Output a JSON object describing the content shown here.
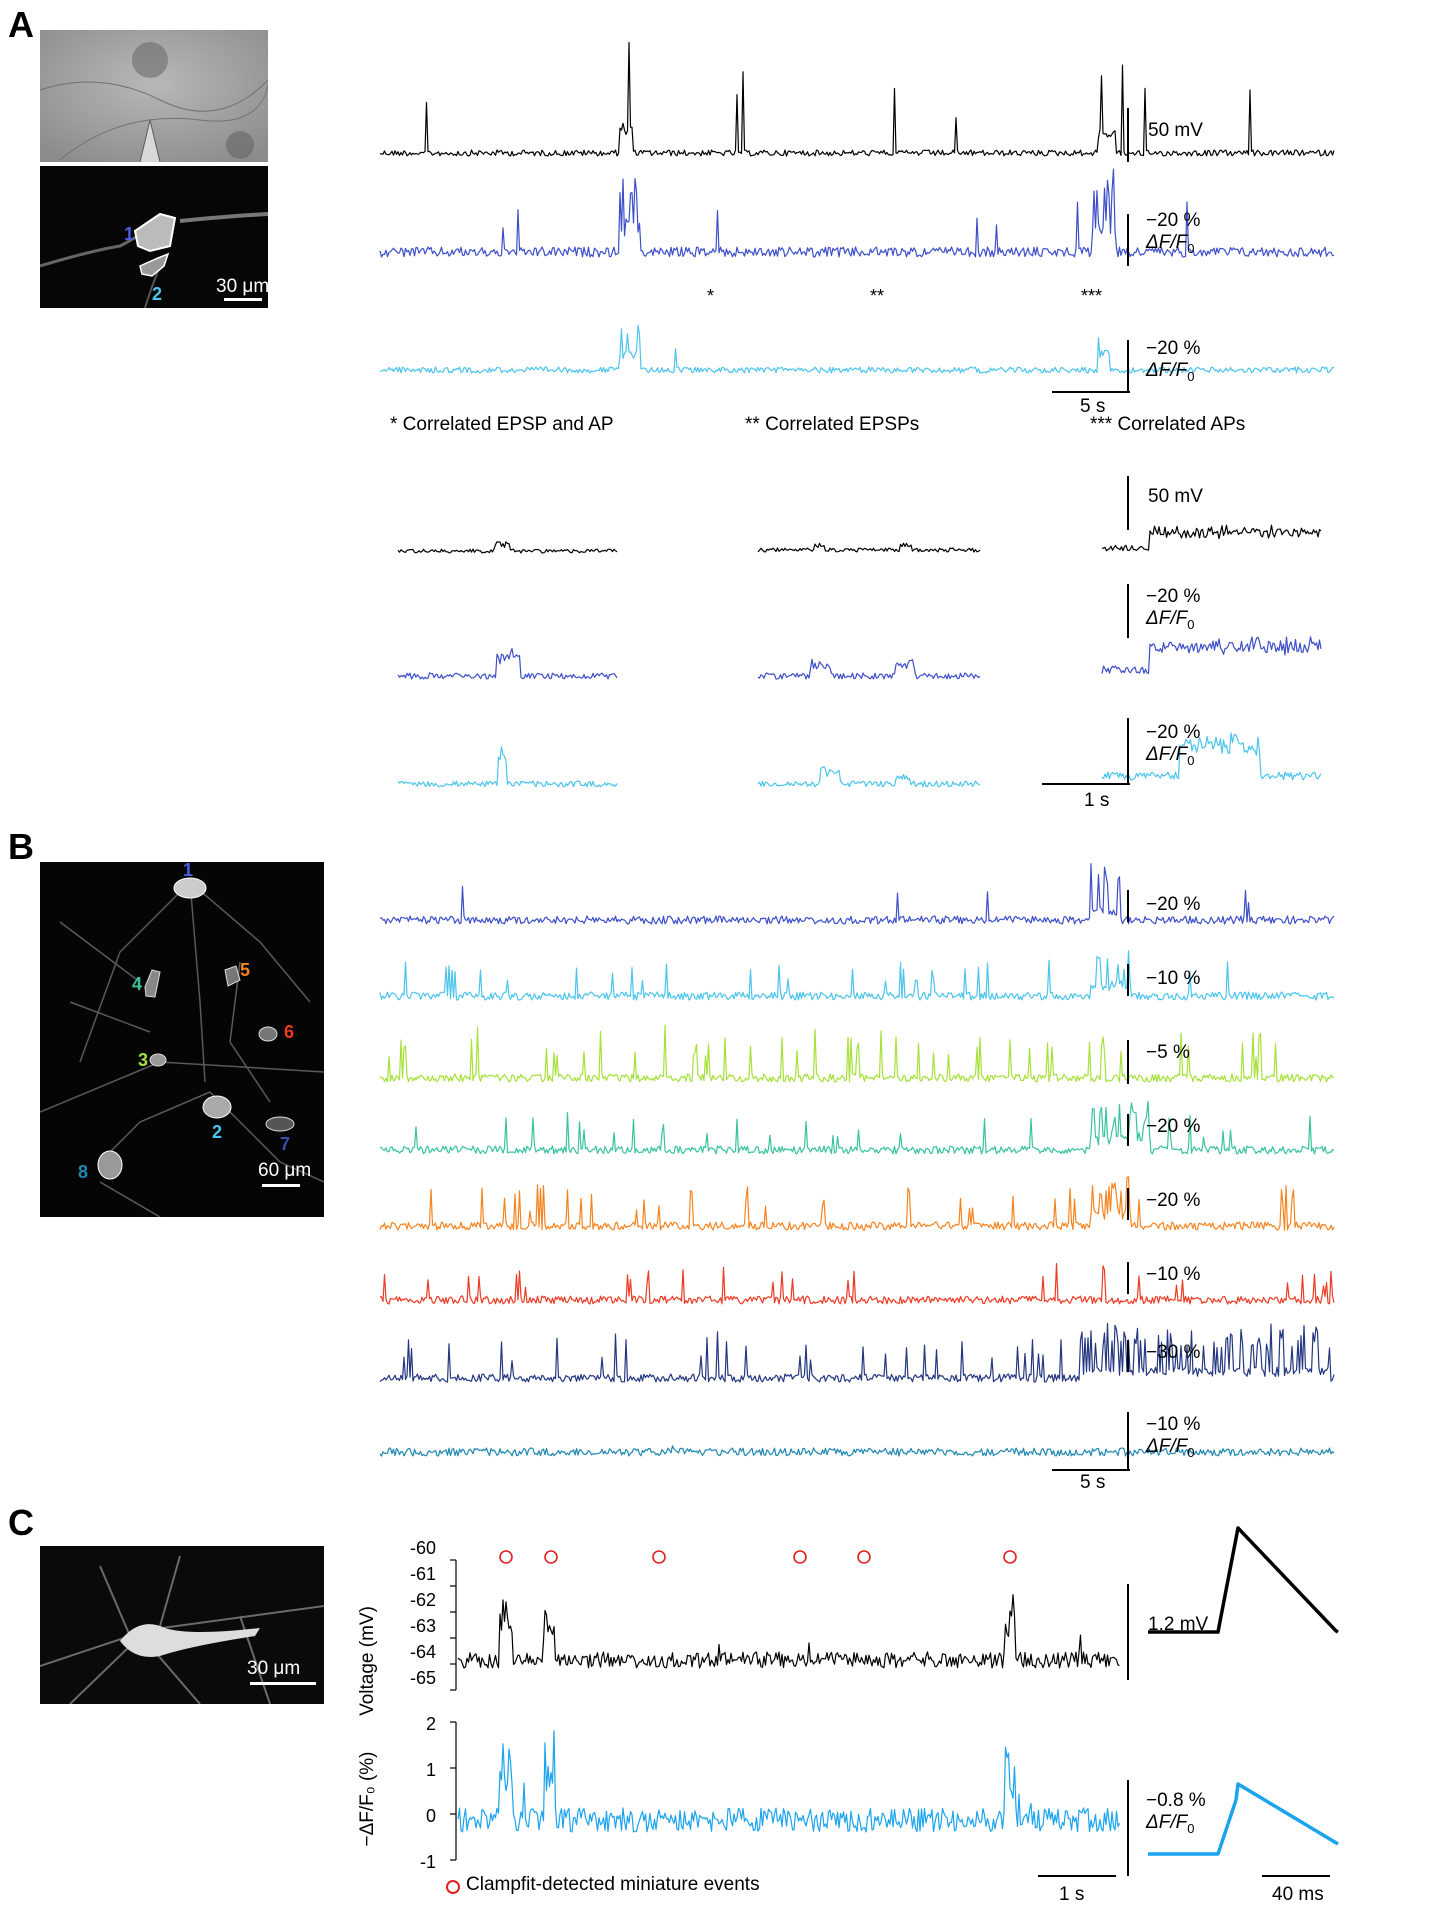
{
  "panels": {
    "a": "A",
    "b": "B",
    "c": "C"
  },
  "colors": {
    "black": "#000000",
    "blue": "#3d4fc9",
    "cyan": "#4cc4ec",
    "green": "#a6e13a",
    "teal": "#39c2a0",
    "orange": "#f58420",
    "red": "#ec3a23",
    "navy": "#243780",
    "dblue": "#1f87b0",
    "c_blue": "#1aa3ef",
    "marker": "#e32020"
  },
  "panel_a": {
    "micro_scale": "30 μm",
    "cell_labels": [
      {
        "n": "1",
        "color": "#4a5ee0"
      },
      {
        "n": "2",
        "color": "#4cc4ec"
      }
    ],
    "scale_voltage": "50 mV",
    "scale_df": "−20 %",
    "scale_df_sub": "ΔF/F",
    "scale_df_sub0": "0",
    "scale_time": "5 s",
    "marker_1": "*",
    "marker_2": "**",
    "marker_3": "***",
    "note_1": "* Correlated EPSP and AP",
    "note_2": "** Correlated EPSPs",
    "note_3": "*** Correlated APs",
    "zoom_scale_voltage": "50 mV",
    "zoom_scale_df": "−20 %",
    "zoom_scale_time": "1 s"
  },
  "panel_b": {
    "micro_scale": "60 μm",
    "cell_labels": [
      {
        "n": "1",
        "color": "#4a5ee0"
      },
      {
        "n": "2",
        "color": "#4cc4ec"
      },
      {
        "n": "3",
        "color": "#a6e13a"
      },
      {
        "n": "4",
        "color": "#39c2a0"
      },
      {
        "n": "5",
        "color": "#f58420"
      },
      {
        "n": "6",
        "color": "#ec3a23"
      },
      {
        "n": "7",
        "color": "#3b4ea8"
      },
      {
        "n": "8",
        "color": "#1f87b0"
      }
    ],
    "trace_scales": [
      "−20 %",
      "−10 %",
      "−5 %",
      "−20 %",
      "−20 %",
      "−10 %",
      "−30 %",
      "−10 %"
    ],
    "scale_df_sub": "ΔF/F",
    "scale_df_sub0": "0",
    "scale_time": "5 s"
  },
  "panel_c": {
    "micro_scale": "30 μm",
    "voltage_ylabel": "Voltage (mV)",
    "voltage_ticks": [
      "-60",
      "-61",
      "-62",
      "-63",
      "-64",
      "-65"
    ],
    "df_ylabel": "−ΔF/F₀ (%)",
    "df_ticks": [
      "2",
      "1",
      "0",
      "-1"
    ],
    "scale_time": "1 s",
    "avg_scale_voltage": "1.2 mV",
    "avg_scale_df": "−0.8 %",
    "avg_scale_df_sub": "ΔF/F",
    "avg_scale_df_sub0": "0",
    "avg_scale_time": "40 ms",
    "legend": "Clampfit-detected miniature events"
  },
  "chart_data": [
    {
      "type": "line",
      "panel": "A",
      "series": [
        {
          "name": "Voltage",
          "color": "#000000",
          "scale_bar": "50 mV"
        },
        {
          "name": "1",
          "color": "#3d4fc9",
          "scale_bar": "−20 % ΔF/F0"
        },
        {
          "name": "2",
          "color": "#4cc4ec",
          "scale_bar": "−20 % ΔF/F0"
        }
      ],
      "scale_time": "5 s",
      "annotations": [
        "* Correlated EPSP and AP",
        "** Correlated EPSPs",
        "*** Correlated APs"
      ]
    },
    {
      "type": "line",
      "panel": "B",
      "series": [
        {
          "name": "1",
          "color": "#3d4fc9",
          "scale_bar": "−20 %"
        },
        {
          "name": "2",
          "color": "#4cc4ec",
          "scale_bar": "−10 %"
        },
        {
          "name": "3",
          "color": "#a6e13a",
          "scale_bar": "−5 %"
        },
        {
          "name": "4",
          "color": "#39c2a0",
          "scale_bar": "−20 %"
        },
        {
          "name": "5",
          "color": "#f58420",
          "scale_bar": "−20 %"
        },
        {
          "name": "6",
          "color": "#ec3a23",
          "scale_bar": "−10 %"
        },
        {
          "name": "7",
          "color": "#243780",
          "scale_bar": "−30 %"
        },
        {
          "name": "8",
          "color": "#1f87b0",
          "scale_bar": "−10 % ΔF/F0"
        }
      ],
      "scale_time": "5 s"
    },
    {
      "type": "line",
      "panel": "C",
      "ylabel": "Voltage (mV)",
      "ylim": [
        -65,
        -60
      ],
      "yticks": [
        -60,
        -61,
        -62,
        -63,
        -64,
        -65
      ],
      "event_times_s": [
        0.75,
        1.35,
        2.85,
        4.8,
        5.7,
        7.7
      ],
      "scale_time": "1 s"
    },
    {
      "type": "line",
      "panel": "C",
      "ylabel": "−ΔF/F0 (%)",
      "ylim": [
        -1,
        2
      ],
      "yticks": [
        2,
        1,
        0,
        -1
      ],
      "scale_time": "1 s"
    },
    {
      "type": "line",
      "panel": "C",
      "series": [
        {
          "name": "Average voltage",
          "color": "#000000",
          "scale_bar": "1.2 mV",
          "peak_mV": 1.2
        },
        {
          "name": "Average ΔF/F0",
          "color": "#1aa3ef",
          "scale_bar": "−0.8 % ΔF/F0",
          "peak_pct": 0.8
        }
      ],
      "scale_time": "40 ms"
    }
  ]
}
